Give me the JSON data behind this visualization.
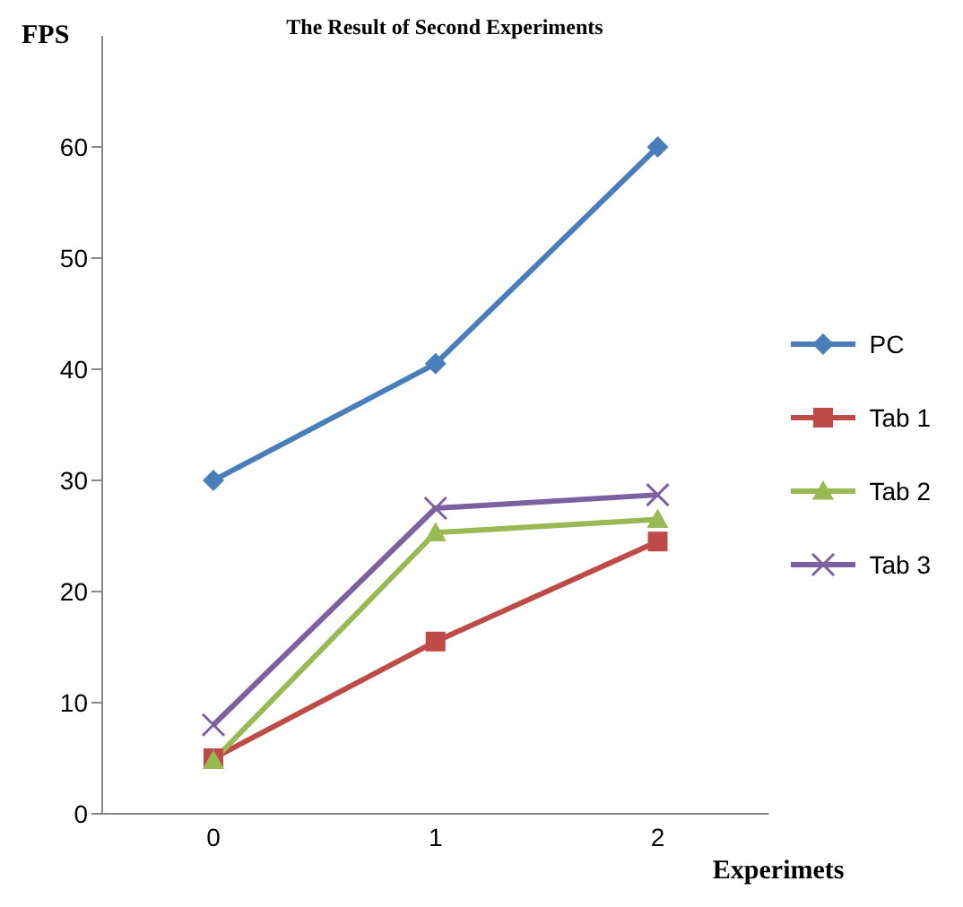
{
  "chart_data": {
    "type": "line",
    "title": "The Result of Second Experiments",
    "xlabel": "Experimets",
    "ylabel": "FPS",
    "categories": [
      "0",
      "1",
      "2"
    ],
    "ylim": [
      0,
      70
    ],
    "yticks": [
      0,
      10,
      20,
      30,
      40,
      50,
      60
    ],
    "grid": false,
    "legend": "right",
    "line_style": "solid",
    "series": [
      {
        "name": "PC",
        "color": "#4a7ebb",
        "marker": "diamond",
        "values": [
          30,
          40.5,
          60
        ]
      },
      {
        "name": "Tab 1",
        "color": "#be4b48",
        "marker": "square",
        "values": [
          5,
          15.5,
          24.5
        ]
      },
      {
        "name": "Tab 2",
        "color": "#98b954",
        "marker": "triangle",
        "values": [
          4.8,
          25.3,
          26.5
        ]
      },
      {
        "name": "Tab 3",
        "color": "#7d60a0",
        "marker": "cross",
        "values": [
          8,
          27.5,
          28.7
        ]
      }
    ]
  }
}
